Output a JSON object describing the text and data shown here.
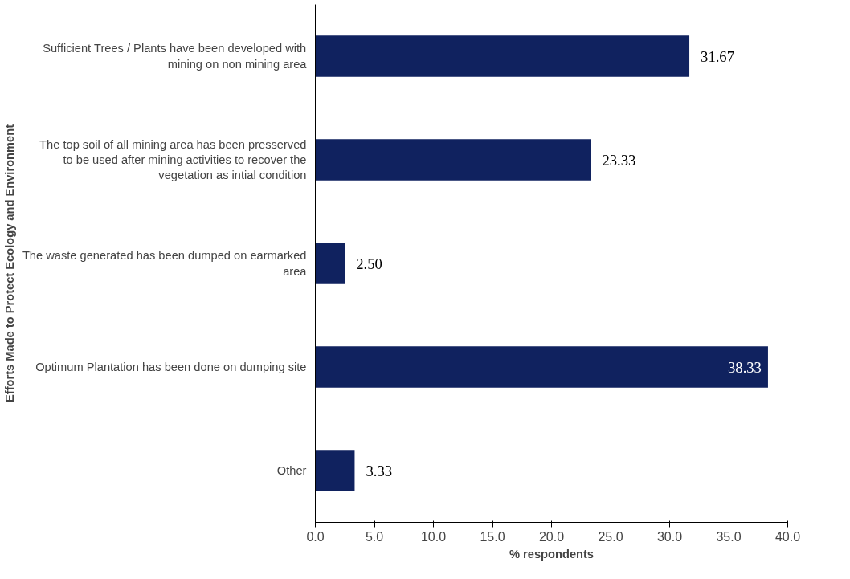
{
  "chart_data": {
    "type": "bar",
    "orientation": "horizontal",
    "categories": [
      "Sufficient Trees / Plants have been developed with mining on non mining area",
      "The top soil of all mining area has been presserved to be used after mining activities to recover the vegetation as intial condition",
      "The waste generated has been dumped on earmarked area",
      "Optimum Plantation has been done on dumping site",
      "Other"
    ],
    "values": [
      31.67,
      23.33,
      2.5,
      38.33,
      3.33
    ],
    "value_labels": [
      "31.67",
      "23.33",
      "2.50",
      "38.33",
      "3.33"
    ],
    "color": "#10225f",
    "xlim": [
      0,
      40
    ],
    "xticks": [
      {
        "value": 0,
        "label": "0.0"
      },
      {
        "value": 5,
        "label": "5.0"
      },
      {
        "value": 10,
        "label": "10.0"
      },
      {
        "value": 15,
        "label": "15.0"
      },
      {
        "value": 20,
        "label": "20.0"
      },
      {
        "value": 25,
        "label": "25.0"
      },
      {
        "value": 30,
        "label": "30.0"
      },
      {
        "value": 35,
        "label": "35.0"
      },
      {
        "value": 40,
        "label": "40.0"
      }
    ],
    "xlabel": "% respondents",
    "ylabel": "Efforts Made to Protect Ecology and Environment",
    "grid": false
  }
}
